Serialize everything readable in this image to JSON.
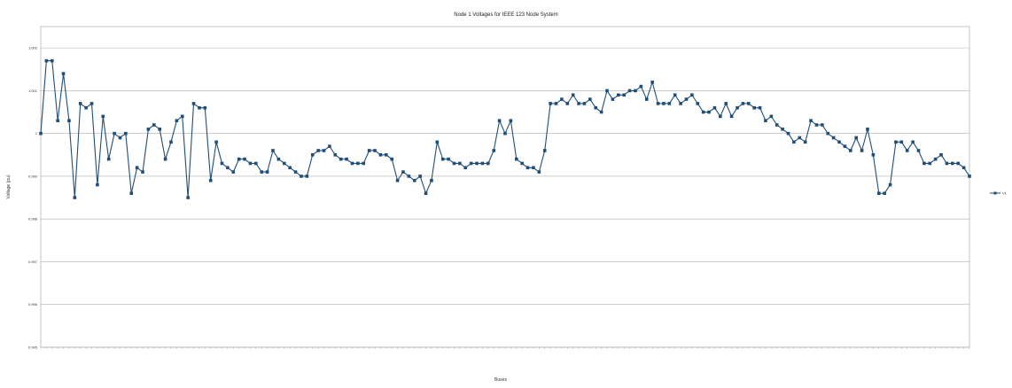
{
  "chart_data": {
    "type": "line",
    "title": "Node 1 Voltages for IEEE 123 Node System",
    "xlabel": "Buses",
    "ylabel": "Voltage (pu)",
    "ylim": [
      0.995,
      1.0025
    ],
    "yticks": [
      0.995,
      0.996,
      0.997,
      0.998,
      0.999,
      1.0,
      1.001,
      1.002
    ],
    "ytick_labels": [
      "0.995",
      "0.996",
      "0.997",
      "0.998",
      "0.999",
      "1",
      "1.001",
      "1.002"
    ],
    "grid": true,
    "legend_position": "right",
    "series": [
      {
        "name": "V1",
        "color": "#1f4e79",
        "values": [
          1.0,
          1.0017,
          1.0017,
          1.0003,
          1.0014,
          1.0003,
          0.9985,
          1.0007,
          1.0006,
          1.0007,
          0.9988,
          1.0004,
          0.9994,
          1.0,
          0.9999,
          1.0,
          0.9986,
          0.9992,
          0.9991,
          1.0001,
          1.0002,
          1.0001,
          0.9994,
          0.9998,
          1.0003,
          1.0004,
          0.9985,
          1.0007,
          1.0006,
          1.0006,
          0.9989,
          0.9998,
          0.9993,
          0.9992,
          0.9991,
          0.9994,
          0.9994,
          0.9993,
          0.9993,
          0.9991,
          0.9991,
          0.9996,
          0.9994,
          0.9993,
          0.9992,
          0.9991,
          0.999,
          0.999,
          0.9995,
          0.9996,
          0.9996,
          0.9997,
          0.9995,
          0.9994,
          0.9994,
          0.9993,
          0.9993,
          0.9993,
          0.9996,
          0.9996,
          0.9995,
          0.9995,
          0.9994,
          0.9989,
          0.9991,
          0.999,
          0.9989,
          0.999,
          0.9986,
          0.9989,
          0.9998,
          0.9994,
          0.9994,
          0.9993,
          0.9993,
          0.9992,
          0.9993,
          0.9993,
          0.9993,
          0.9993,
          0.9996,
          1.0003,
          1.0,
          1.0003,
          0.9994,
          0.9993,
          0.9992,
          0.9992,
          0.9991,
          0.9996,
          1.0007,
          1.0007,
          1.0008,
          1.0007,
          1.0009,
          1.0007,
          1.0007,
          1.0008,
          1.0006,
          1.0005,
          1.001,
          1.0008,
          1.0009,
          1.0009,
          1.001,
          1.001,
          1.0011,
          1.0008,
          1.0012,
          1.0007,
          1.0007,
          1.0007,
          1.0009,
          1.0007,
          1.0008,
          1.0009,
          1.0007,
          1.0005,
          1.0005,
          1.0006,
          1.0004,
          1.0007,
          1.0004,
          1.0006,
          1.0007,
          1.0007,
          1.0006,
          1.0006,
          1.0003,
          1.0004,
          1.0002,
          1.0001,
          1.0,
          0.9998,
          0.9999,
          0.9998,
          1.0003,
          1.0002,
          1.0002,
          1.0,
          0.9999,
          0.9998,
          0.9997,
          0.9996,
          0.9999,
          0.9996,
          1.0001,
          0.9995,
          0.9986,
          0.9986,
          0.9988,
          0.9998,
          0.9998,
          0.9996,
          0.9998,
          0.9996,
          0.9993,
          0.9993,
          0.9994,
          0.9995,
          0.9993,
          0.9993,
          0.9993,
          0.9992,
          0.999
        ]
      }
    ]
  }
}
